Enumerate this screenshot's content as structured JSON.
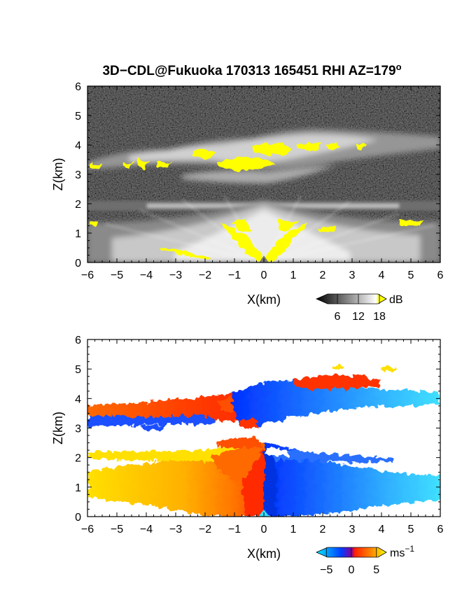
{
  "title": "3D−CDL@Fukuoka 170313 165451 RHI AZ=179",
  "title_sup": "o",
  "chart_data": [
    {
      "type": "heatmap",
      "quantity": "reflectivity",
      "xlabel": "X(km)",
      "ylabel": "Z(km)",
      "xlim": [
        -6,
        6
      ],
      "ylim": [
        0,
        6
      ],
      "x_ticks": [
        "−6",
        "−5",
        "−4",
        "−3",
        "−2",
        "−1",
        "0",
        "1",
        "2",
        "3",
        "4",
        "5",
        "6"
      ],
      "y_ticks": [
        "0",
        "1",
        "2",
        "3",
        "4",
        "5",
        "6"
      ],
      "colorbar": {
        "unit": "dB",
        "ticks": [
          "6",
          "12",
          "18"
        ],
        "tick_values": [
          6,
          12,
          18
        ],
        "range": [
          0,
          20
        ],
        "colors": [
          "#000000",
          "#ffffff",
          "#ffff00"
        ]
      },
      "layers": [
        {
          "name": "upper cloud band",
          "x_range": [
            -6,
            6
          ],
          "z_range": [
            3.0,
            4.6
          ],
          "max_value": 20
        },
        {
          "name": "middle layer",
          "x_range": [
            -6,
            6
          ],
          "z_range": [
            1.8,
            2.1
          ],
          "max_value": 14
        },
        {
          "name": "lower fan",
          "x_range": [
            -6,
            6
          ],
          "z_range": [
            0,
            1.4
          ],
          "max_value": 20
        }
      ]
    },
    {
      "type": "heatmap",
      "quantity": "doppler velocity",
      "xlabel": "X(km)",
      "ylabel": "Z(km)",
      "xlim": [
        -6,
        6
      ],
      "ylim": [
        0,
        6
      ],
      "x_ticks": [
        "−6",
        "−5",
        "−4",
        "−3",
        "−2",
        "−1",
        "0",
        "1",
        "2",
        "3",
        "4",
        "5",
        "6"
      ],
      "y_ticks": [
        "0",
        "1",
        "2",
        "3",
        "4",
        "5",
        "6"
      ],
      "colorbar": {
        "unit": "ms",
        "unit_sup": "−1",
        "ticks": [
          "−5",
          "0",
          "5"
        ],
        "tick_values": [
          -5,
          0,
          5
        ],
        "range": [
          -7,
          7
        ],
        "colors": [
          "#00e8ff",
          "#0040ff",
          "#ff2000",
          "#ffff00"
        ]
      },
      "layers": [
        {
          "name": "upper band west",
          "x_range": [
            -6,
            -0.5
          ],
          "z_range": [
            3.0,
            4.0
          ],
          "velocity": 3
        },
        {
          "name": "upper band east",
          "x_range": [
            -0.5,
            6
          ],
          "z_range": [
            3.0,
            4.6
          ],
          "velocity": -4
        },
        {
          "name": "lower layer west",
          "x_range": [
            -6,
            0
          ],
          "z_range": [
            0,
            2.3
          ],
          "velocity": 4
        },
        {
          "name": "lower layer east",
          "x_range": [
            0,
            6
          ],
          "z_range": [
            0,
            2.1
          ],
          "velocity": -4
        }
      ]
    }
  ]
}
